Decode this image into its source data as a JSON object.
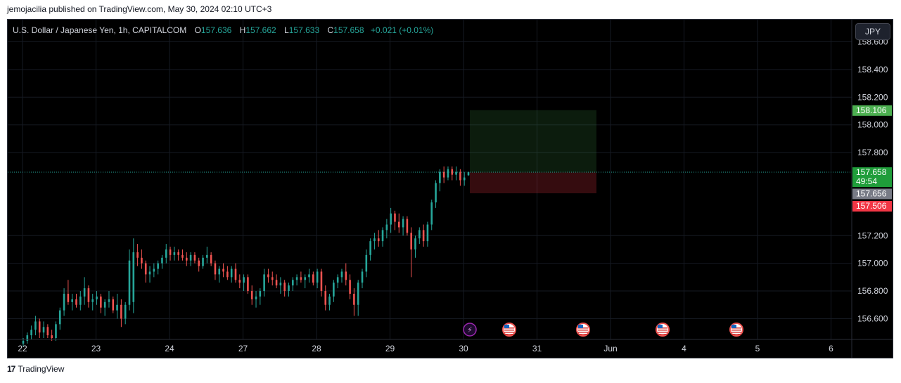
{
  "publisher": "jemojacilia published on TradingView.com, May 30, 2024 02:10 UTC+3",
  "legend": {
    "symbol": "U.S. Dollar / Japanese Yen, 1h, CAPITALCOM",
    "o_label": "O",
    "o": "157.636",
    "h_label": "H",
    "h": "157.662",
    "l_label": "L",
    "l": "157.633",
    "c_label": "C",
    "c": "157.658",
    "change": "+0.021 (+0.01%)"
  },
  "currency_button": "JPY",
  "footer": {
    "logo": "17",
    "brand": "TradingView"
  },
  "colors": {
    "up": "#26a69a",
    "down": "#ef5350",
    "target": "#4caf50",
    "stop": "#f23645",
    "entry": "#787b86"
  },
  "chart_data": {
    "type": "candlestick",
    "title": "U.S. Dollar / Japanese Yen, 1h, CAPITALCOM",
    "y_range": [
      156.45,
      158.76
    ],
    "y_ticks": [
      "158.600",
      "158.400",
      "158.200",
      "158.000",
      "157.800",
      "157.200",
      "157.000",
      "156.800",
      "156.600"
    ],
    "x_ticks": [
      "22",
      "23",
      "24",
      "27",
      "28",
      "29",
      "30",
      "31",
      "Jun",
      "4",
      "5",
      "6"
    ],
    "price_labels": {
      "target": "158.106",
      "last": "157.658",
      "countdown": "49:54",
      "entry": "157.656",
      "stop": "157.506"
    },
    "position": {
      "entry": 157.656,
      "target": 158.106,
      "stop": 157.506
    },
    "events": [
      "lightning",
      "us-flag",
      "us-flag",
      "us-flag",
      "us-flag"
    ],
    "candles": [
      [
        156.42,
        156.46,
        156.4,
        156.44
      ],
      [
        156.44,
        156.5,
        156.42,
        156.48
      ],
      [
        156.48,
        156.55,
        156.45,
        156.52
      ],
      [
        156.52,
        156.62,
        156.48,
        156.58
      ],
      [
        156.58,
        156.6,
        156.46,
        156.5
      ],
      [
        156.5,
        156.58,
        156.46,
        156.54
      ],
      [
        156.54,
        156.56,
        156.46,
        156.48
      ],
      [
        156.48,
        156.52,
        156.44,
        156.46
      ],
      [
        156.46,
        156.58,
        156.44,
        156.56
      ],
      [
        156.56,
        156.68,
        156.52,
        156.66
      ],
      [
        156.66,
        156.82,
        156.62,
        156.78
      ],
      [
        156.78,
        156.88,
        156.7,
        156.72
      ],
      [
        156.72,
        156.78,
        156.66,
        156.74
      ],
      [
        156.74,
        156.78,
        156.68,
        156.7
      ],
      [
        156.7,
        156.8,
        156.66,
        156.76
      ],
      [
        156.76,
        156.9,
        156.7,
        156.82
      ],
      [
        156.82,
        156.84,
        156.68,
        156.72
      ],
      [
        156.72,
        156.78,
        156.66,
        156.74
      ],
      [
        156.74,
        156.8,
        156.7,
        156.76
      ],
      [
        156.76,
        156.78,
        156.64,
        156.68
      ],
      [
        156.68,
        156.74,
        156.62,
        156.72
      ],
      [
        156.72,
        156.8,
        156.68,
        156.74
      ],
      [
        156.74,
        156.76,
        156.64,
        156.66
      ],
      [
        156.66,
        156.78,
        156.6,
        156.7
      ],
      [
        156.7,
        156.74,
        156.54,
        156.6
      ],
      [
        156.6,
        156.72,
        156.56,
        156.7
      ],
      [
        156.7,
        157.1,
        156.66,
        157.02
      ],
      [
        156.72,
        157.18,
        156.64,
        157.08
      ],
      [
        157.08,
        157.14,
        156.98,
        157.04
      ],
      [
        157.04,
        157.1,
        156.96,
        157.0
      ],
      [
        157.0,
        157.02,
        156.86,
        156.92
      ],
      [
        156.92,
        156.98,
        156.86,
        156.94
      ],
      [
        156.94,
        157.0,
        156.9,
        156.96
      ],
      [
        156.96,
        157.02,
        156.92,
        157.0
      ],
      [
        157.0,
        157.06,
        156.96,
        157.04
      ],
      [
        157.04,
        157.14,
        157.0,
        157.1
      ],
      [
        157.1,
        157.12,
        157.02,
        157.06
      ],
      [
        157.06,
        157.12,
        157.02,
        157.08
      ],
      [
        157.08,
        157.1,
        157.02,
        157.06
      ],
      [
        157.06,
        157.1,
        157.02,
        157.04
      ],
      [
        157.04,
        157.08,
        156.98,
        157.02
      ],
      [
        157.02,
        157.08,
        156.98,
        157.06
      ],
      [
        157.06,
        157.08,
        157.0,
        157.02
      ],
      [
        157.02,
        157.04,
        156.94,
        156.98
      ],
      [
        156.98,
        157.06,
        156.96,
        157.04
      ],
      [
        157.04,
        157.12,
        157.0,
        157.06
      ],
      [
        157.06,
        157.08,
        156.98,
        157.0
      ],
      [
        157.0,
        157.02,
        156.88,
        156.92
      ],
      [
        156.92,
        156.98,
        156.86,
        156.96
      ],
      [
        156.96,
        157.0,
        156.9,
        156.94
      ],
      [
        156.94,
        156.98,
        156.88,
        156.9
      ],
      [
        156.9,
        156.98,
        156.86,
        156.96
      ],
      [
        156.96,
        157.0,
        156.86,
        156.88
      ],
      [
        156.88,
        156.92,
        156.82,
        156.86
      ],
      [
        156.86,
        156.92,
        156.8,
        156.9
      ],
      [
        156.9,
        156.92,
        156.78,
        156.8
      ],
      [
        156.8,
        156.84,
        156.7,
        156.74
      ],
      [
        156.74,
        156.8,
        156.68,
        156.76
      ],
      [
        156.76,
        156.82,
        156.7,
        156.8
      ],
      [
        156.8,
        156.96,
        156.76,
        156.92
      ],
      [
        156.92,
        156.96,
        156.86,
        156.9
      ],
      [
        156.9,
        156.94,
        156.84,
        156.88
      ],
      [
        156.88,
        156.92,
        156.82,
        156.84
      ],
      [
        156.84,
        156.9,
        156.78,
        156.86
      ],
      [
        156.86,
        156.88,
        156.76,
        156.8
      ],
      [
        156.8,
        156.86,
        156.76,
        156.84
      ],
      [
        156.84,
        156.9,
        156.8,
        156.88
      ],
      [
        156.88,
        156.92,
        156.84,
        156.9
      ],
      [
        156.9,
        156.94,
        156.86,
        156.88
      ],
      [
        156.88,
        156.92,
        156.82,
        156.9
      ],
      [
        156.9,
        156.96,
        156.86,
        156.92
      ],
      [
        156.92,
        156.94,
        156.84,
        156.86
      ],
      [
        156.86,
        156.96,
        156.82,
        156.94
      ],
      [
        156.94,
        156.96,
        156.76,
        156.8
      ],
      [
        156.8,
        156.84,
        156.66,
        156.7
      ],
      [
        156.7,
        156.78,
        156.66,
        156.76
      ],
      [
        156.76,
        156.88,
        156.72,
        156.86
      ],
      [
        156.86,
        156.92,
        156.82,
        156.9
      ],
      [
        156.9,
        156.96,
        156.86,
        156.94
      ],
      [
        156.94,
        157.0,
        156.84,
        156.88
      ],
      [
        156.88,
        156.92,
        156.74,
        156.78
      ],
      [
        156.78,
        156.82,
        156.62,
        156.7
      ],
      [
        156.7,
        156.88,
        156.62,
        156.86
      ],
      [
        156.86,
        156.96,
        156.82,
        156.94
      ],
      [
        156.94,
        157.1,
        156.9,
        157.06
      ],
      [
        157.06,
        157.18,
        157.02,
        157.16
      ],
      [
        157.16,
        157.22,
        157.1,
        157.18
      ],
      [
        157.18,
        157.24,
        157.12,
        157.16
      ],
      [
        157.16,
        157.26,
        157.12,
        157.24
      ],
      [
        157.24,
        157.32,
        157.18,
        157.28
      ],
      [
        157.28,
        157.4,
        157.22,
        157.36
      ],
      [
        157.36,
        157.38,
        157.24,
        157.3
      ],
      [
        157.3,
        157.36,
        157.22,
        157.26
      ],
      [
        157.26,
        157.34,
        157.2,
        157.32
      ],
      [
        157.32,
        157.34,
        157.2,
        157.22
      ],
      [
        157.22,
        157.26,
        156.9,
        157.1
      ],
      [
        157.1,
        157.2,
        157.04,
        157.18
      ],
      [
        157.18,
        157.26,
        157.14,
        157.24
      ],
      [
        157.24,
        157.28,
        157.12,
        157.16
      ],
      [
        157.16,
        157.3,
        157.12,
        157.28
      ],
      [
        157.28,
        157.46,
        157.24,
        157.44
      ],
      [
        157.44,
        157.6,
        157.4,
        157.58
      ],
      [
        157.58,
        157.68,
        157.52,
        157.66
      ],
      [
        157.66,
        157.7,
        157.58,
        157.62
      ],
      [
        157.62,
        157.7,
        157.6,
        157.68
      ],
      [
        157.68,
        157.7,
        157.6,
        157.64
      ],
      [
        157.64,
        157.7,
        157.6,
        157.66
      ],
      [
        157.66,
        157.68,
        157.56,
        157.6
      ],
      [
        157.6,
        157.66,
        157.56,
        157.62
      ],
      [
        157.636,
        157.662,
        157.633,
        157.658
      ]
    ]
  }
}
